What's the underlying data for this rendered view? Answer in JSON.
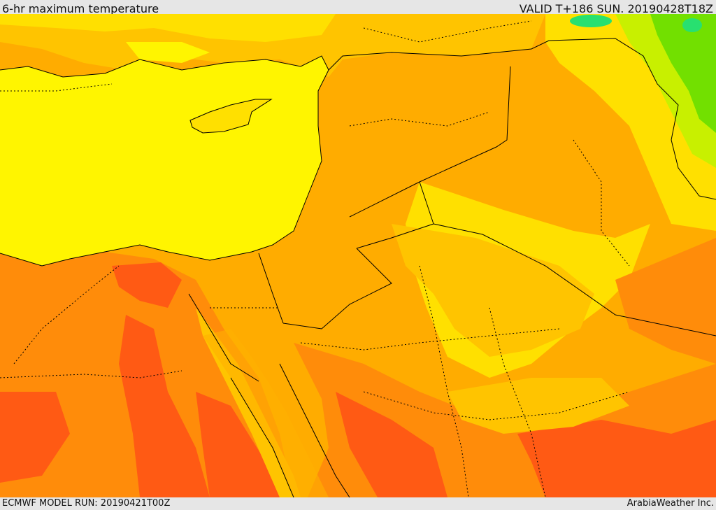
{
  "header": {
    "title": "6-hr maximum temperature",
    "valid_time": "VALID T+186 SUN. 20190428T18Z"
  },
  "footer": {
    "model_run": "ECMWF MODEL RUN: 20190421T00Z",
    "credit": "ArabiaWeather Inc."
  },
  "colors": {
    "sea": "#fff500",
    "very_hot": "#ff5a14",
    "hot": "#ff8c0a",
    "warm_orange": "#ffac00",
    "warm": "#ffc400",
    "mild": "#ffe000",
    "cool": "#c8f000",
    "cooler": "#72e000",
    "cold": "#28e070",
    "borders": "#000000"
  }
}
